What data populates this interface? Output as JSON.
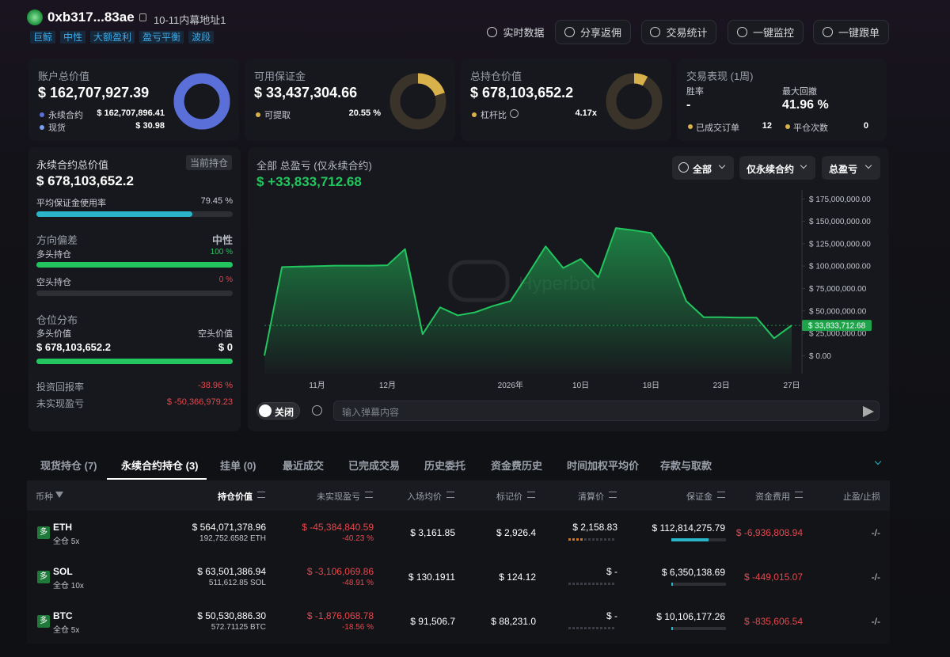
{
  "header": {
    "address": "0xb317...83ae",
    "alias": "10-11内幕地址1",
    "tags": [
      "巨鲸",
      "中性",
      "大额盈利",
      "盈亏平衡",
      "波段"
    ],
    "buttons": [
      "实时数据",
      "分享返佣",
      "交易统计",
      "一键监控",
      "一键跟单"
    ]
  },
  "cards": [
    {
      "title": "账户总价值",
      "value": "$ 162,707,927.39",
      "rows": [
        {
          "label": "永续合约",
          "value": "$ 162,707,896.41"
        },
        {
          "label": "现货",
          "value": "$ 30.98"
        }
      ]
    },
    {
      "title": "可用保证金",
      "value": "$ 33,437,304.66",
      "rows": [
        {
          "label": "可提取",
          "value": "20.55 %"
        }
      ]
    },
    {
      "title": "总持仓价值",
      "value": "$ 678,103,652.2",
      "rows": [
        {
          "label": "杠杆比",
          "value": "4.17x"
        }
      ]
    }
  ],
  "performance": {
    "title": "交易表现 (1周)",
    "stats": [
      {
        "label": "胜率",
        "value": "-"
      },
      {
        "label": "最大回撤",
        "value": "41.96 %"
      }
    ],
    "rows": [
      {
        "label": "已成交订单",
        "value": "12"
      },
      {
        "label": "平仓次数",
        "value": "0"
      }
    ]
  },
  "perp_panel": {
    "title": "永续合约总价值",
    "badge": "当前持仓",
    "value": "$ 678,103,652.2",
    "margin_usage": {
      "label": "平均保证金使用率",
      "value": "79.45 %"
    },
    "direction": {
      "label": "方向偏差",
      "value": "中性"
    },
    "long": {
      "label": "多头持仓",
      "value": "100 %"
    },
    "short": {
      "label": "空头持仓",
      "value": "0 %"
    },
    "distribution": {
      "label": "仓位分布",
      "long_label": "多头价值",
      "short_label": "空头价值",
      "long_value": "$ 678,103,652.2",
      "short_value": "$ 0"
    },
    "roi": {
      "label": "投资回报率",
      "value": "-38.96 %"
    },
    "upnl": {
      "label": "未实现盈亏",
      "value": "$ -50,366,979.23"
    }
  },
  "pnl_panel": {
    "title": "全部 总盈亏 (仅永续合约)",
    "pnl": "$ +33,833,712.68",
    "filters": [
      "全部",
      "仅永续合约",
      "总盈亏"
    ],
    "watermark": "Hyperbot",
    "toggle": "关闭",
    "input_placeholder": "输入弹幕内容"
  },
  "chart_data": {
    "type": "area",
    "categories": [
      null,
      null,
      null,
      "11月",
      null,
      null,
      null,
      "12月",
      null,
      null,
      null,
      null,
      null,
      null,
      "2026年",
      null,
      null,
      null,
      "10日",
      null,
      null,
      null,
      "18日",
      null,
      null,
      null,
      "23日",
      null,
      null,
      null,
      "27日"
    ],
    "values": [
      0,
      99000000,
      99500000,
      100000000,
      100500000,
      100500000,
      100500000,
      101000000,
      119000000,
      24000000,
      54000000,
      45000000,
      48500000,
      55500000,
      61000000,
      91000000,
      122000000,
      98000000,
      108000000,
      87500000,
      142500000,
      140000000,
      137000000,
      110000000,
      61000000,
      43000000,
      43000000,
      42500000,
      42500000,
      19500000,
      33833712.68
    ],
    "color": "#22c55e",
    "current_label": "$ 33,833,712.68",
    "ylim": [
      -20000000,
      185000000
    ],
    "yticks": [
      {
        "value": 0,
        "label": "$ 0.00"
      },
      {
        "value": 25000000,
        "label": "$ 25,000,000.00"
      },
      {
        "value": 50000000,
        "label": "$ 50,000,000.00"
      },
      {
        "value": 75000000,
        "label": "$ 75,000,000.00"
      },
      {
        "value": 100000000,
        "label": "$ 100,000,000.00"
      },
      {
        "value": 125000000,
        "label": "$ 125,000,000.00"
      },
      {
        "value": 150000000,
        "label": "$ 150,000,000.00"
      },
      {
        "value": 175000000,
        "label": "$ 175,000,000.00"
      }
    ]
  },
  "tabs": {
    "items": [
      "现货持仓 (7)",
      "永续合约持仓 (3)",
      "挂单 (0)",
      "最近成交",
      "已完成交易",
      "历史委托",
      "资金费历史",
      "时间加权平均价",
      "存款与取款"
    ],
    "active": 1
  },
  "table": {
    "columns": [
      "币种",
      "持仓价值",
      "未实现盈亏",
      "入场均价",
      "标记价",
      "清算价",
      "保证金",
      "资金费用",
      "止盈/止损"
    ],
    "rows": [
      {
        "side": "多",
        "coin": "ETH",
        "mode": "全仓 5x",
        "value": "$ 564,071,378.96",
        "size": "192,752.6582 ETH",
        "pnl": "$ -45,384,840.59",
        "roe": "-40.23 %",
        "entry": "$ 3,161.85",
        "mark": "$ 2,926.4",
        "liq": "$ 2,158.83",
        "margin": "$ 112,814,275.79",
        "funding": "$ -6,936,808.94",
        "tpsl": "-/-"
      },
      {
        "side": "多",
        "coin": "SOL",
        "mode": "全仓 10x",
        "value": "$ 63,501,386.94",
        "size": "511,612.85 SOL",
        "pnl": "$ -3,106,069.86",
        "roe": "-48.91 %",
        "entry": "$ 130.1911",
        "mark": "$ 124.12",
        "liq": "$ -",
        "margin": "$ 6,350,138.69",
        "funding": "$ -449,015.07",
        "tpsl": "-/-"
      },
      {
        "side": "多",
        "coin": "BTC",
        "mode": "全仓 5x",
        "value": "$ 50,530,886.30",
        "size": "572.71125 BTC",
        "pnl": "$ -1,876,068.78",
        "roe": "-18.56 %",
        "entry": "$ 91,506.7",
        "mark": "$ 88,231.0",
        "liq": "$ -",
        "margin": "$ 10,106,177.26",
        "funding": "$ -835,606.54",
        "tpsl": "-/-"
      }
    ]
  }
}
